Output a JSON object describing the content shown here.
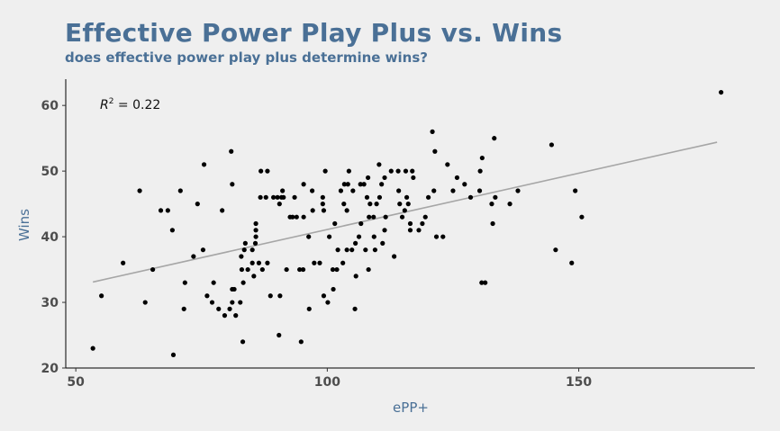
{
  "chart_data": {
    "type": "scatter",
    "title": "Effective Power Play Plus vs. Wins",
    "subtitle": "does effective power play plus determine wins?",
    "xlabel": "ePP+",
    "ylabel": "Wins",
    "xlim": [
      48,
      185
    ],
    "ylim": [
      20,
      64
    ],
    "xticks": [
      50,
      100,
      150
    ],
    "yticks": [
      20,
      30,
      40,
      50,
      60
    ],
    "grid": false,
    "annotation": {
      "prefix": "R",
      "superscript": "2",
      "text": " = 0.22",
      "x": 54,
      "y": 60
    },
    "trendline": {
      "x": [
        53.4,
        177.5
      ],
      "y": [
        33.1,
        54.4
      ],
      "color": "#a6a6a6"
    },
    "point_color": "#000000",
    "points": [
      [
        53.4,
        23
      ],
      [
        55.1,
        31
      ],
      [
        59.4,
        36
      ],
      [
        62.7,
        47
      ],
      [
        63.8,
        30
      ],
      [
        65.3,
        35
      ],
      [
        66.9,
        44
      ],
      [
        68.3,
        44
      ],
      [
        69.2,
        41
      ],
      [
        69.4,
        22
      ],
      [
        70.8,
        47
      ],
      [
        71.5,
        29
      ],
      [
        71.7,
        33
      ],
      [
        73.4,
        37
      ],
      [
        74.2,
        45
      ],
      [
        75.3,
        38
      ],
      [
        75.5,
        51
      ],
      [
        76.1,
        31
      ],
      [
        77.1,
        30
      ],
      [
        77.4,
        33
      ],
      [
        78.4,
        29
      ],
      [
        79.1,
        44
      ],
      [
        79.6,
        28
      ],
      [
        80.6,
        29
      ],
      [
        80.9,
        53
      ],
      [
        81.1,
        30
      ],
      [
        81.1,
        32
      ],
      [
        81.1,
        48
      ],
      [
        81.5,
        32
      ],
      [
        81.8,
        28
      ],
      [
        82.7,
        30
      ],
      [
        82.9,
        37
      ],
      [
        83.0,
        35
      ],
      [
        83.2,
        24
      ],
      [
        83.3,
        33
      ],
      [
        83.5,
        38
      ],
      [
        83.7,
        39
      ],
      [
        84.2,
        35
      ],
      [
        85.1,
        36
      ],
      [
        85.1,
        38
      ],
      [
        85.4,
        34
      ],
      [
        85.7,
        39
      ],
      [
        85.8,
        40
      ],
      [
        85.8,
        41
      ],
      [
        85.8,
        42
      ],
      [
        86.4,
        36
      ],
      [
        86.7,
        46
      ],
      [
        86.8,
        50
      ],
      [
        87.1,
        35
      ],
      [
        87.8,
        46
      ],
      [
        88.1,
        36
      ],
      [
        88.1,
        50
      ],
      [
        88.7,
        31
      ],
      [
        89.3,
        46
      ],
      [
        90.1,
        46
      ],
      [
        90.4,
        25
      ],
      [
        90.5,
        45
      ],
      [
        90.6,
        31
      ],
      [
        90.9,
        46
      ],
      [
        91.1,
        47
      ],
      [
        91.3,
        46
      ],
      [
        91.9,
        35
      ],
      [
        92.6,
        43
      ],
      [
        93.1,
        43
      ],
      [
        93.5,
        46
      ],
      [
        93.9,
        43
      ],
      [
        94.5,
        35
      ],
      [
        94.8,
        24
      ],
      [
        95.2,
        35
      ],
      [
        95.3,
        48
      ],
      [
        95.3,
        43
      ],
      [
        96.3,
        40
      ],
      [
        96.4,
        29
      ],
      [
        97.0,
        47
      ],
      [
        97.1,
        44
      ],
      [
        97.4,
        36
      ],
      [
        98.5,
        36
      ],
      [
        99.1,
        46
      ],
      [
        99.1,
        45
      ],
      [
        99.3,
        31
      ],
      [
        99.3,
        44
      ],
      [
        99.6,
        50
      ],
      [
        100.1,
        30
      ],
      [
        100.4,
        40
      ],
      [
        101.1,
        35
      ],
      [
        101.2,
        32
      ],
      [
        101.5,
        42
      ],
      [
        101.9,
        35
      ],
      [
        102.1,
        38
      ],
      [
        102.7,
        47
      ],
      [
        103.1,
        36
      ],
      [
        103.3,
        45
      ],
      [
        103.4,
        48
      ],
      [
        103.9,
        38
      ],
      [
        103.9,
        44
      ],
      [
        104.1,
        48
      ],
      [
        104.3,
        50
      ],
      [
        104.9,
        38
      ],
      [
        105.1,
        47
      ],
      [
        105.5,
        29
      ],
      [
        105.6,
        39
      ],
      [
        105.7,
        34
      ],
      [
        106.3,
        40
      ],
      [
        106.6,
        48
      ],
      [
        106.7,
        42
      ],
      [
        107.3,
        48
      ],
      [
        107.6,
        38
      ],
      [
        107.9,
        46
      ],
      [
        108.1,
        49
      ],
      [
        108.2,
        35
      ],
      [
        108.3,
        43
      ],
      [
        108.5,
        45
      ],
      [
        109.2,
        43
      ],
      [
        109.3,
        40
      ],
      [
        109.5,
        38
      ],
      [
        109.8,
        45
      ],
      [
        110.3,
        51
      ],
      [
        110.4,
        46
      ],
      [
        110.8,
        48
      ],
      [
        111.0,
        39
      ],
      [
        111.4,
        41
      ],
      [
        111.4,
        49
      ],
      [
        111.6,
        43
      ],
      [
        112.7,
        50
      ],
      [
        113.3,
        37
      ],
      [
        114.1,
        50
      ],
      [
        114.2,
        47
      ],
      [
        114.4,
        45
      ],
      [
        114.9,
        43
      ],
      [
        115.4,
        44
      ],
      [
        115.6,
        50
      ],
      [
        115.8,
        46
      ],
      [
        116.1,
        45
      ],
      [
        116.5,
        42
      ],
      [
        116.5,
        41
      ],
      [
        116.9,
        50
      ],
      [
        117.1,
        49
      ],
      [
        118.2,
        41
      ],
      [
        118.9,
        42
      ],
      [
        119.5,
        43
      ],
      [
        120.1,
        46
      ],
      [
        120.9,
        56
      ],
      [
        121.2,
        47
      ],
      [
        121.4,
        53
      ],
      [
        121.7,
        40
      ],
      [
        123.0,
        40
      ],
      [
        123.9,
        51
      ],
      [
        125.0,
        47
      ],
      [
        125.8,
        49
      ],
      [
        127.3,
        48
      ],
      [
        128.5,
        46
      ],
      [
        130.3,
        47
      ],
      [
        130.4,
        50
      ],
      [
        130.7,
        33
      ],
      [
        130.8,
        52
      ],
      [
        131.4,
        33
      ],
      [
        132.7,
        45
      ],
      [
        132.9,
        42
      ],
      [
        133.2,
        55
      ],
      [
        133.4,
        46
      ],
      [
        136.3,
        45
      ],
      [
        137.9,
        47
      ],
      [
        144.6,
        54
      ],
      [
        145.4,
        38
      ],
      [
        148.6,
        36
      ],
      [
        149.3,
        47
      ],
      [
        150.6,
        43
      ],
      [
        178.3,
        62
      ]
    ]
  }
}
